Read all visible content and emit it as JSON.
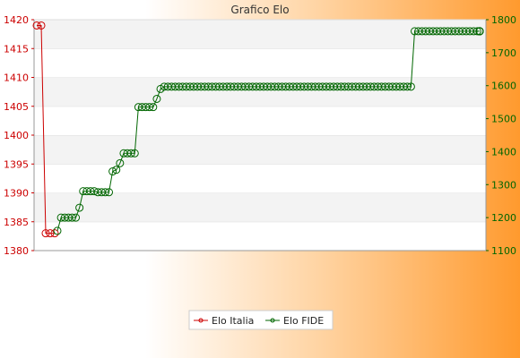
{
  "chart_data": {
    "type": "line",
    "title": "Grafico Elo",
    "y_left_lim": [
      1380,
      1420
    ],
    "y_left_ticks": [
      1380,
      1385,
      1390,
      1395,
      1400,
      1405,
      1410,
      1415,
      1420
    ],
    "y_right_lim": [
      1100,
      1800
    ],
    "y_right_ticks": [
      1100,
      1200,
      1300,
      1400,
      1500,
      1600,
      1700,
      1800
    ],
    "grid": true,
    "legend_position": "bottom-center",
    "series": [
      {
        "name": "Elo Italia",
        "axis": "left",
        "color": "#cc0000",
        "values": [
          1419,
          1419,
          1383,
          1383,
          1383
        ]
      },
      {
        "name": "Elo FIDE",
        "axis": "right",
        "color": "#006600",
        "values": [
          1160,
          1200,
          1200,
          1200,
          1200,
          1200,
          1230,
          1280,
          1280,
          1280,
          1280,
          1277,
          1277,
          1277,
          1277,
          1340,
          1345,
          1365,
          1395,
          1395,
          1395,
          1395,
          1535,
          1535,
          1535,
          1535,
          1535,
          1560,
          1590,
          1597,
          1597,
          1597,
          1597,
          1597,
          1597,
          1597,
          1597,
          1597,
          1597,
          1597,
          1597,
          1597,
          1597,
          1597,
          1597,
          1597,
          1597,
          1597,
          1597,
          1597,
          1597,
          1597,
          1597,
          1597,
          1597,
          1597,
          1597,
          1597,
          1597,
          1597,
          1597,
          1597,
          1597,
          1597,
          1597,
          1597,
          1597,
          1597,
          1597,
          1597,
          1597,
          1597,
          1597,
          1597,
          1597,
          1597,
          1597,
          1597,
          1597,
          1597,
          1597,
          1597,
          1597,
          1597,
          1597,
          1597,
          1597,
          1597,
          1597,
          1597,
          1597,
          1597,
          1597,
          1597,
          1597,
          1597,
          1597,
          1765,
          1765,
          1765,
          1765,
          1765,
          1765,
          1765,
          1765,
          1765,
          1765,
          1765,
          1765,
          1765,
          1765,
          1765,
          1765,
          1765,
          1765,
          1765,
          1765,
          1765,
          1765,
          1765,
          1765
        ]
      }
    ]
  }
}
